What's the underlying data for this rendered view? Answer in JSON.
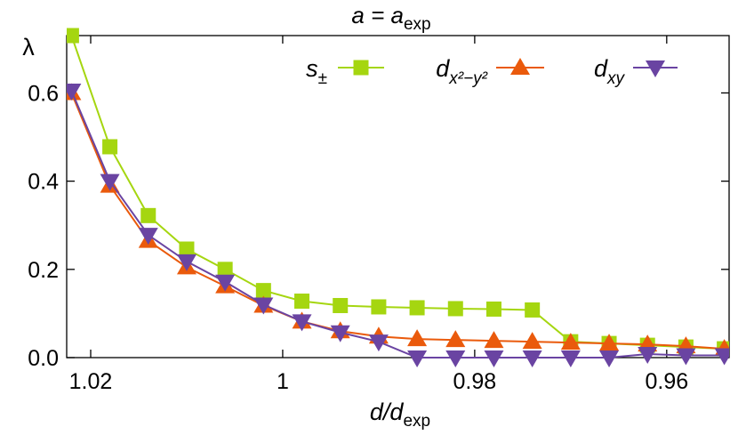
{
  "chart_data": {
    "type": "line",
    "title": {
      "base": "a = a",
      "sub": "exp"
    },
    "xlabel": {
      "base": "d/d",
      "sub": "exp"
    },
    "ylabel": "λ",
    "xlim": [
      1.0225,
      0.9535
    ],
    "ylim": [
      0.0,
      0.73
    ],
    "x_ticks": [
      {
        "value": 1.02,
        "label": "1.02"
      },
      {
        "value": 1.0,
        "label": "1"
      },
      {
        "value": 0.98,
        "label": "0.98"
      },
      {
        "value": 0.96,
        "label": "0.96"
      }
    ],
    "y_ticks": [
      {
        "value": 0.0,
        "label": "0.0"
      },
      {
        "value": 0.2,
        "label": "0.2"
      },
      {
        "value": 0.4,
        "label": "0.4"
      },
      {
        "value": 0.6,
        "label": "0.6"
      }
    ],
    "grid": false,
    "legend_position": "top",
    "series": [
      {
        "name": "s±",
        "legend": {
          "base": "s",
          "sub": "±"
        },
        "color": "#a5d610",
        "marker": "square",
        "x": [
          1.022,
          1.018,
          1.014,
          1.01,
          1.006,
          1.002,
          0.998,
          0.994,
          0.99,
          0.986,
          0.982,
          0.978,
          0.974,
          0.97,
          0.966,
          0.962,
          0.958,
          0.954
        ],
        "y": [
          0.73,
          0.478,
          0.322,
          0.246,
          0.2,
          0.152,
          0.128,
          0.118,
          0.115,
          0.113,
          0.111,
          0.11,
          0.108,
          0.036,
          0.032,
          0.028,
          0.024,
          0.02
        ]
      },
      {
        "name": "dx²−y²",
        "legend": {
          "base": "d",
          "sub": "x²−y²"
        },
        "color": "#ea5a0c",
        "marker": "triangle-up",
        "x": [
          1.022,
          1.018,
          1.014,
          1.01,
          1.006,
          1.002,
          0.998,
          0.994,
          0.99,
          0.986,
          0.982,
          0.978,
          0.974,
          0.97,
          0.966,
          0.962,
          0.958,
          0.954
        ],
        "y": [
          0.6,
          0.39,
          0.265,
          0.205,
          0.162,
          0.118,
          0.082,
          0.06,
          0.048,
          0.042,
          0.04,
          0.038,
          0.036,
          0.034,
          0.032,
          0.03,
          0.026,
          0.02
        ]
      },
      {
        "name": "dxy",
        "legend": {
          "base": "d",
          "sub": "xy"
        },
        "color": "#6a44a2",
        "marker": "triangle-down",
        "x": [
          1.022,
          1.018,
          1.014,
          1.01,
          1.006,
          1.002,
          0.998,
          0.994,
          0.99,
          0.986,
          0.982,
          0.978,
          0.974,
          0.97,
          0.966,
          0.962,
          0.958,
          0.954
        ],
        "y": [
          0.605,
          0.4,
          0.278,
          0.218,
          0.172,
          0.12,
          0.082,
          0.057,
          0.036,
          0.0,
          0.0,
          0.0,
          0.0,
          0.0,
          0.0,
          0.008,
          0.005,
          0.005
        ]
      }
    ]
  }
}
